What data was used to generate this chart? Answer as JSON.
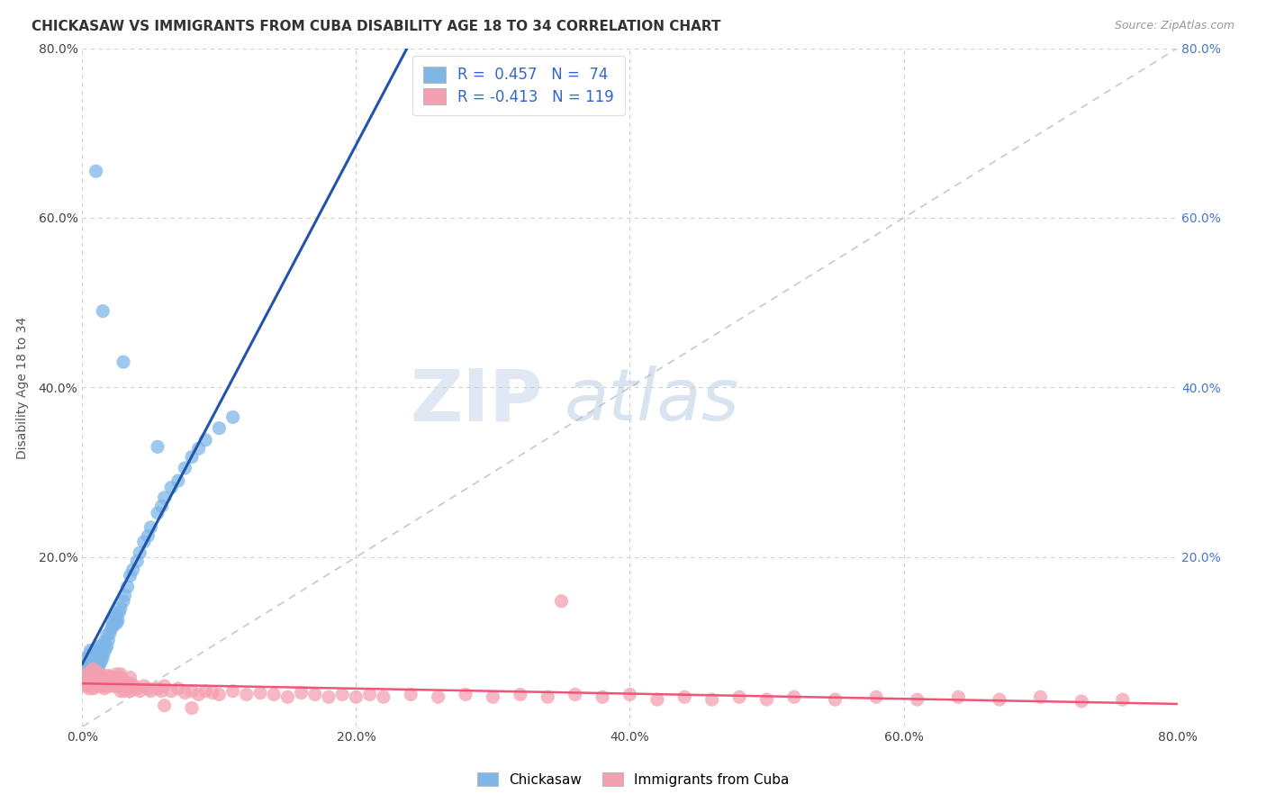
{
  "title": "CHICKASAW VS IMMIGRANTS FROM CUBA DISABILITY AGE 18 TO 34 CORRELATION CHART",
  "source": "Source: ZipAtlas.com",
  "ylabel": "Disability Age 18 to 34",
  "xlim": [
    0.0,
    0.8
  ],
  "ylim": [
    0.0,
    0.8
  ],
  "chickasaw_R": 0.457,
  "chickasaw_N": 74,
  "cuba_R": -0.413,
  "cuba_N": 119,
  "chickasaw_color": "#7EB6E8",
  "cuba_color": "#F4A0B0",
  "chickasaw_line_color": "#2255AA",
  "cuba_line_color": "#EE5577",
  "trendline_color": "#AAAAAA",
  "legend_label_chickasaw": "Chickasaw",
  "legend_label_cuba": "Immigrants from Cuba",
  "background_color": "#FFFFFF",
  "grid_color": "#CCCCCC",
  "title_color": "#333333",
  "right_axis_color": "#4477CC",
  "chickasaw_x": [
    0.002,
    0.003,
    0.003,
    0.004,
    0.004,
    0.005,
    0.005,
    0.005,
    0.006,
    0.006,
    0.006,
    0.007,
    0.007,
    0.008,
    0.008,
    0.008,
    0.009,
    0.009,
    0.01,
    0.01,
    0.01,
    0.011,
    0.011,
    0.012,
    0.012,
    0.013,
    0.013,
    0.013,
    0.014,
    0.014,
    0.015,
    0.015,
    0.016,
    0.016,
    0.017,
    0.018,
    0.018,
    0.019,
    0.02,
    0.021,
    0.022,
    0.022,
    0.023,
    0.024,
    0.025,
    0.025,
    0.026,
    0.027,
    0.028,
    0.03,
    0.031,
    0.033,
    0.035,
    0.037,
    0.04,
    0.042,
    0.045,
    0.048,
    0.05,
    0.055,
    0.058,
    0.06,
    0.065,
    0.07,
    0.075,
    0.08,
    0.085,
    0.09,
    0.1,
    0.11,
    0.03,
    0.055,
    0.01,
    0.015
  ],
  "chickasaw_y": [
    0.06,
    0.065,
    0.08,
    0.055,
    0.07,
    0.062,
    0.075,
    0.085,
    0.06,
    0.07,
    0.09,
    0.065,
    0.08,
    0.065,
    0.075,
    0.088,
    0.072,
    0.082,
    0.068,
    0.078,
    0.092,
    0.075,
    0.085,
    0.07,
    0.082,
    0.075,
    0.088,
    0.095,
    0.078,
    0.092,
    0.082,
    0.095,
    0.088,
    0.1,
    0.092,
    0.095,
    0.108,
    0.102,
    0.11,
    0.115,
    0.118,
    0.125,
    0.12,
    0.128,
    0.122,
    0.132,
    0.125,
    0.135,
    0.14,
    0.148,
    0.155,
    0.165,
    0.178,
    0.185,
    0.195,
    0.205,
    0.218,
    0.225,
    0.235,
    0.252,
    0.26,
    0.27,
    0.282,
    0.29,
    0.305,
    0.318,
    0.328,
    0.338,
    0.352,
    0.365,
    0.43,
    0.33,
    0.655,
    0.49
  ],
  "cuba_x": [
    0.002,
    0.003,
    0.003,
    0.004,
    0.004,
    0.005,
    0.005,
    0.006,
    0.006,
    0.007,
    0.007,
    0.008,
    0.008,
    0.008,
    0.009,
    0.009,
    0.01,
    0.01,
    0.011,
    0.011,
    0.012,
    0.012,
    0.013,
    0.013,
    0.014,
    0.015,
    0.015,
    0.016,
    0.016,
    0.017,
    0.018,
    0.018,
    0.019,
    0.02,
    0.02,
    0.021,
    0.022,
    0.022,
    0.023,
    0.024,
    0.025,
    0.026,
    0.027,
    0.028,
    0.028,
    0.029,
    0.03,
    0.031,
    0.032,
    0.033,
    0.034,
    0.035,
    0.036,
    0.038,
    0.04,
    0.042,
    0.045,
    0.048,
    0.05,
    0.055,
    0.058,
    0.06,
    0.065,
    0.07,
    0.075,
    0.08,
    0.085,
    0.09,
    0.095,
    0.1,
    0.11,
    0.12,
    0.13,
    0.14,
    0.15,
    0.16,
    0.17,
    0.18,
    0.19,
    0.2,
    0.21,
    0.22,
    0.24,
    0.26,
    0.28,
    0.3,
    0.32,
    0.34,
    0.36,
    0.38,
    0.4,
    0.42,
    0.44,
    0.46,
    0.48,
    0.5,
    0.52,
    0.55,
    0.58,
    0.61,
    0.64,
    0.67,
    0.7,
    0.73,
    0.76,
    0.02,
    0.025,
    0.03,
    0.035,
    0.01,
    0.012,
    0.015,
    0.018,
    0.022,
    0.025,
    0.028,
    0.35,
    0.06,
    0.08
  ],
  "cuba_y": [
    0.055,
    0.048,
    0.062,
    0.05,
    0.058,
    0.045,
    0.06,
    0.052,
    0.065,
    0.048,
    0.058,
    0.045,
    0.055,
    0.068,
    0.05,
    0.06,
    0.048,
    0.058,
    0.052,
    0.062,
    0.048,
    0.058,
    0.05,
    0.06,
    0.055,
    0.048,
    0.058,
    0.045,
    0.055,
    0.05,
    0.048,
    0.058,
    0.052,
    0.048,
    0.055,
    0.05,
    0.048,
    0.058,
    0.052,
    0.048,
    0.055,
    0.05,
    0.048,
    0.058,
    0.042,
    0.05,
    0.048,
    0.042,
    0.052,
    0.048,
    0.045,
    0.042,
    0.05,
    0.048,
    0.045,
    0.042,
    0.048,
    0.045,
    0.042,
    0.045,
    0.042,
    0.048,
    0.042,
    0.045,
    0.04,
    0.042,
    0.038,
    0.042,
    0.04,
    0.038,
    0.042,
    0.038,
    0.04,
    0.038,
    0.035,
    0.04,
    0.038,
    0.035,
    0.038,
    0.035,
    0.038,
    0.035,
    0.038,
    0.035,
    0.038,
    0.035,
    0.038,
    0.035,
    0.038,
    0.035,
    0.038,
    0.032,
    0.035,
    0.032,
    0.035,
    0.032,
    0.035,
    0.032,
    0.035,
    0.032,
    0.035,
    0.032,
    0.035,
    0.03,
    0.032,
    0.06,
    0.062,
    0.055,
    0.058,
    0.065,
    0.062,
    0.058,
    0.06,
    0.055,
    0.058,
    0.062,
    0.148,
    0.025,
    0.022
  ]
}
